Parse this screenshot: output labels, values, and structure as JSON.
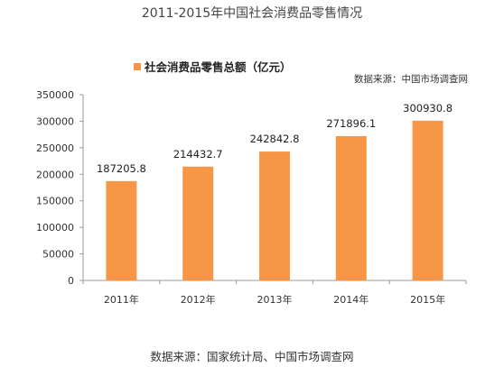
{
  "title": "2011-2015年中国社会消费品零售情况",
  "source_top": "数据来源：中国市场调查网",
  "source_bottom": "数据来源：国家统计局、中国市场调查网",
  "colors": {
    "bar": "#F79646",
    "axis": "#999999"
  },
  "chart_data": {
    "type": "bar",
    "categories": [
      "2011年",
      "2012年",
      "2013年",
      "2014年",
      "2015年"
    ],
    "series": [
      {
        "name": "社会消费品零售总额（亿元）",
        "values": [
          187205.8,
          214432.7,
          242842.8,
          271896.1,
          300930.8
        ]
      }
    ],
    "data_labels": [
      "187205.8",
      "214432.7",
      "242842.8",
      "271896.1",
      "300930.8"
    ],
    "ylim": [
      0,
      350000
    ],
    "yticks": [
      "0",
      "50000",
      "100000",
      "150000",
      "200000",
      "250000",
      "300000",
      "350000"
    ],
    "grid": false,
    "legend": "top-left"
  }
}
